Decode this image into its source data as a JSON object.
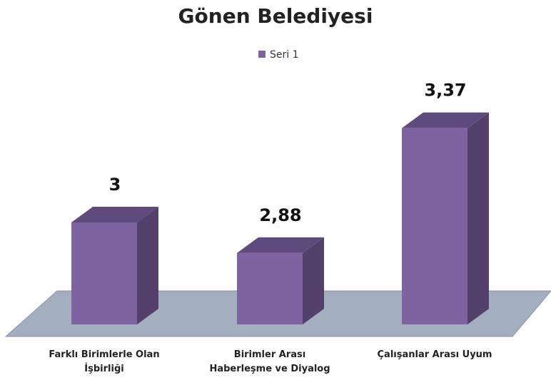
{
  "chart_data": {
    "type": "bar3d",
    "title": "Gönen Belediyesi",
    "categories": [
      "Farklı Birimlerle Olan İşbirliği",
      "Birimler Arası Haberleşme ve Diyalog",
      "Çalışanlar Arası Uyum"
    ],
    "series": [
      {
        "name": "Seri 1",
        "color": "#7e63a1",
        "values": [
          3,
          2.88,
          3.37
        ],
        "value_labels": [
          "3",
          "2,88",
          "3,37"
        ]
      }
    ],
    "ylim": [
      2.6,
      3.4
    ],
    "legend": "top"
  }
}
